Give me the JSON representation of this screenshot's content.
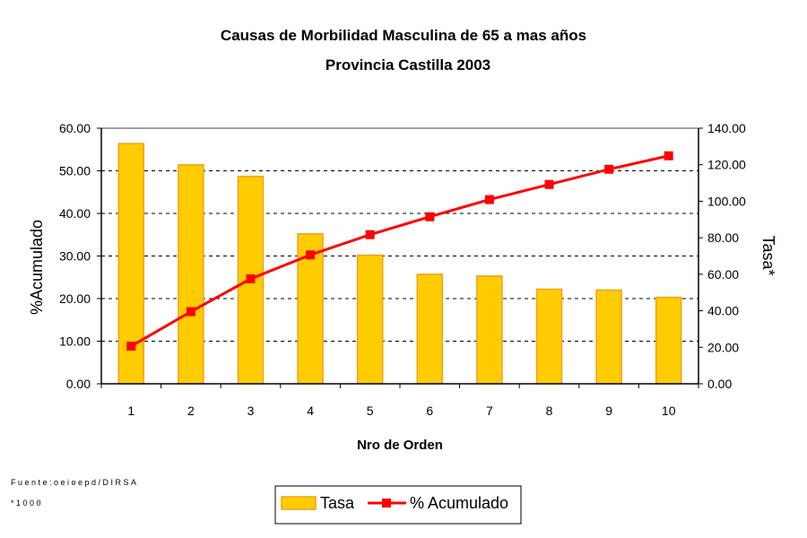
{
  "chart_data": {
    "type": "bar+line",
    "title": "Causas de Morbilidad Masculina de 65 a mas años",
    "subtitle": "Provincia Castilla 2003",
    "xlabel": "Nro de Orden",
    "ylabel_left": "%Acumulado",
    "ylabel_right": "Tasa*",
    "categories": [
      "1",
      "2",
      "3",
      "4",
      "5",
      "6",
      "7",
      "8",
      "9",
      "10"
    ],
    "ylim_left": [
      0,
      60
    ],
    "ylim_right": [
      0,
      140
    ],
    "yticks_left": [
      "0.00",
      "10.00",
      "20.00",
      "30.00",
      "40.00",
      "50.00",
      "60.00"
    ],
    "yticks_right": [
      "0.00",
      "20.00",
      "40.00",
      "60.00",
      "80.00",
      "100.00",
      "120.00",
      "140.00"
    ],
    "grid": "dashed horizontal",
    "legend_position": "bottom",
    "series": [
      {
        "name": "Tasa",
        "type": "bar",
        "axis": "left",
        "color": "#FFCC00",
        "edge": "#F0A020",
        "values": [
          56.4,
          51.4,
          48.7,
          35.2,
          30.2,
          25.7,
          25.3,
          22.2,
          22.0,
          20.3
        ]
      },
      {
        "name": "% Acumulado",
        "type": "line",
        "axis": "right",
        "color": "#FF0000",
        "values": [
          20.6,
          39.5,
          57.5,
          70.6,
          81.7,
          91.5,
          100.9,
          109.2,
          117.5,
          124.9
        ]
      }
    ],
    "notes": [
      "Fuente:oeioepd/DIRSA",
      "*1000"
    ]
  }
}
